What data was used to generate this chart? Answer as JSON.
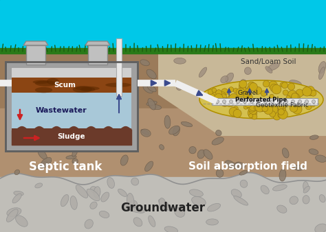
{
  "sky_color": "#00C8E8",
  "grass_color": "#3A8C20",
  "soil_upper_color": "#9B7B5A",
  "soil_lower_color": "#B09070",
  "groundwater_color": "#C0BEB8",
  "tank_wall_color": "#A0A0A0",
  "tank_wall_dark": "#707070",
  "tank_interior_color": "#ADD8E6",
  "scum_color": "#8B4513",
  "sludge_color": "#6B3A2A",
  "wastewater_color": "#A8C8D8",
  "pipe_color": "#EFEFEF",
  "gravel_zone_color": "#D4C050",
  "gravel_circle_color": "#C8A820",
  "arrow_color": "#3A4A8C",
  "red_arrow_color": "#CC2222",
  "stone_soil_color": "#8B7B6A",
  "stone_soil_edge": "#6B5B4A",
  "stone_gw_color": "#B0ADA8",
  "stone_gw_edge": "#909090",
  "sand_region_color": "#C8B898",
  "labels": {
    "scum": "Scum",
    "wastewater": "Wastewater",
    "sludge": "Sludge",
    "septic_tank": "Septic tank",
    "soil_field": "Soil absorption field",
    "groundwater": "Groundwater",
    "sand_loam": "Sand/Loam Soil",
    "geotextile": "Geotextile Fabric",
    "perforated": "Perforated Pipe",
    "gravel": "Gravel"
  }
}
